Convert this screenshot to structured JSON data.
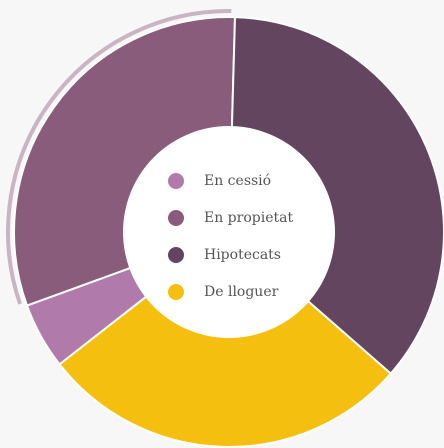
{
  "chart_data": {
    "type": "donut",
    "categories": [
      "En cessió",
      "En propietat",
      "Hipotecats",
      "De lloguer"
    ],
    "values": [
      5,
      31,
      36,
      28
    ],
    "colors": [
      "#b07aaa",
      "#8a5c7c",
      "#634560",
      "#f5bf0f"
    ],
    "legend": "center"
  }
}
